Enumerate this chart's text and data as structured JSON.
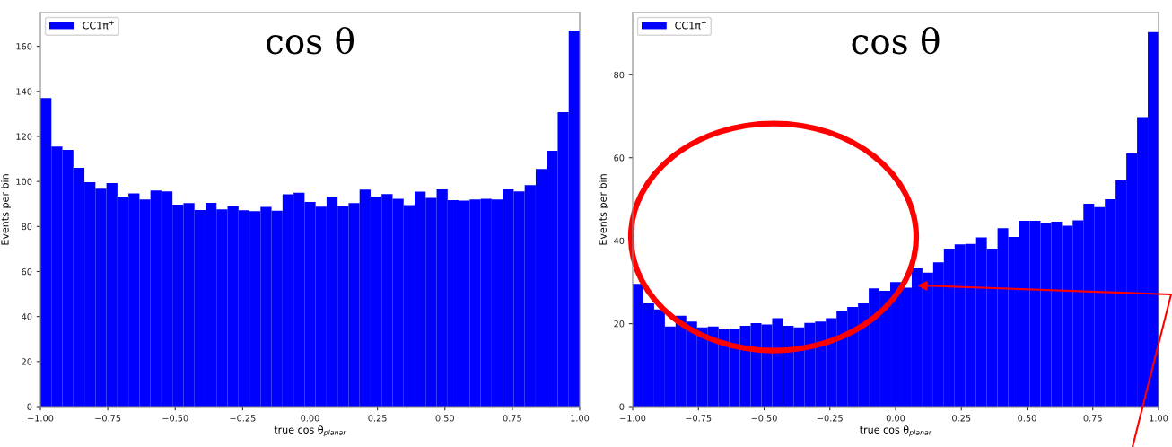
{
  "chart_data": [
    {
      "type": "histogram",
      "title": "cos θ",
      "xlabel": "true cos θ$_{planar}$",
      "ylabel": "Events per bin",
      "legend": "top left",
      "grid": false,
      "bins": [
        -1.0,
        -0.959184,
        -0.918367,
        -0.877551,
        -0.836735,
        -0.795918,
        -0.755102,
        -0.714286,
        -0.673469,
        -0.632653,
        -0.591837,
        -0.55102,
        -0.510204,
        -0.469388,
        -0.428571,
        -0.387755,
        -0.346939,
        -0.306122,
        -0.265306,
        -0.22449,
        -0.183673,
        -0.142857,
        -0.102041,
        -0.061224,
        -0.020408,
        0.020408,
        0.061224,
        0.102041,
        0.142857,
        0.183673,
        0.22449,
        0.265306,
        0.306122,
        0.346939,
        0.387755,
        0.428571,
        0.469388,
        0.510204,
        0.55102,
        0.591837,
        0.632653,
        0.673469,
        0.714286,
        0.755102,
        0.795918,
        0.836735,
        0.877551,
        0.918367,
        0.959184,
        1.0
      ],
      "series": [
        {
          "name": "CC1π$^{+}$",
          "color": "#0000ff",
          "values": [
            137,
            115.5,
            114,
            106,
            99.7,
            96.8,
            99.3,
            93.3,
            94.7,
            92,
            96,
            95.6,
            89.7,
            90.4,
            87.3,
            90.5,
            87.6,
            89,
            87.2,
            86.8,
            88.7,
            87,
            94.3,
            95,
            90.9,
            88.8,
            93.3,
            89,
            90.4,
            96.4,
            93.3,
            94.4,
            92.3,
            89.5,
            95.5,
            92.7,
            96.5,
            91.7,
            91.5,
            92,
            92.3,
            92,
            96.5,
            95.6,
            98.4,
            105.5,
            113.6,
            130.8,
            167
          ]
        }
      ],
      "xlim": [
        -1.0,
        1.0
      ],
      "ylim": [
        0,
        175
      ],
      "xticks": [
        {
          "value": -1.0,
          "label": "−1.00"
        },
        {
          "value": -0.75,
          "label": "−0.75"
        },
        {
          "value": -0.5,
          "label": "−0.50"
        },
        {
          "value": -0.25,
          "label": "−0.25"
        },
        {
          "value": 0.0,
          "label": "0.00"
        },
        {
          "value": 0.25,
          "label": "0.25"
        },
        {
          "value": 0.5,
          "label": "0.50"
        },
        {
          "value": 0.75,
          "label": "0.75"
        },
        {
          "value": 1.0,
          "label": "1.00"
        }
      ],
      "yticks": [
        0,
        20,
        40,
        60,
        80,
        100,
        120,
        140,
        160
      ]
    },
    {
      "type": "histogram",
      "title": "cos θ",
      "xlabel": "true cos θ$_{planar}$",
      "ylabel": "Events per bin",
      "legend": "top left",
      "grid": false,
      "bins": [
        -1.0,
        -0.959184,
        -0.918367,
        -0.877551,
        -0.836735,
        -0.795918,
        -0.755102,
        -0.714286,
        -0.673469,
        -0.632653,
        -0.591837,
        -0.55102,
        -0.510204,
        -0.469388,
        -0.428571,
        -0.387755,
        -0.346939,
        -0.306122,
        -0.265306,
        -0.22449,
        -0.183673,
        -0.142857,
        -0.102041,
        -0.061224,
        -0.020408,
        0.020408,
        0.061224,
        0.102041,
        0.142857,
        0.183673,
        0.22449,
        0.265306,
        0.306122,
        0.346939,
        0.387755,
        0.428571,
        0.469388,
        0.510204,
        0.55102,
        0.591837,
        0.632653,
        0.673469,
        0.714286,
        0.755102,
        0.795918,
        0.836735,
        0.877551,
        0.918367,
        0.959184,
        1.0
      ],
      "series": [
        {
          "name": "CC1π$^{+}$",
          "color": "#0000ff",
          "values": [
            29.6,
            24.9,
            23.4,
            19.3,
            21.9,
            20.5,
            19.1,
            19.3,
            18.6,
            18.8,
            19.5,
            20.1,
            19.8,
            21.3,
            19.5,
            19.1,
            20.2,
            20.5,
            21.3,
            23.1,
            24.0,
            24.9,
            28.5,
            27.9,
            30.0,
            28.7,
            33.3,
            32.3,
            34.8,
            38.1,
            39.1,
            39.2,
            40.8,
            38.1,
            43.0,
            40.9,
            44.8,
            44.8,
            44.3,
            44.6,
            43.6,
            44.9,
            48.9,
            48.1,
            50.0,
            54.6,
            61.0,
            69.8,
            90.3
          ]
        }
      ],
      "xlim": [
        -1.0,
        1.0
      ],
      "ylim": [
        0,
        95
      ],
      "xticks": [
        {
          "value": -1.0,
          "label": "−1.00"
        },
        {
          "value": -0.75,
          "label": "−0.75"
        },
        {
          "value": -0.5,
          "label": "−0.50"
        },
        {
          "value": -0.25,
          "label": "−0.25"
        },
        {
          "value": 0.0,
          "label": "0.00"
        },
        {
          "value": 0.25,
          "label": "0.25"
        },
        {
          "value": 0.5,
          "label": "0.50"
        },
        {
          "value": 0.75,
          "label": "0.75"
        },
        {
          "value": 1.0,
          "label": "1.00"
        }
      ],
      "yticks": [
        0,
        20,
        40,
        60,
        80
      ]
    }
  ]
}
